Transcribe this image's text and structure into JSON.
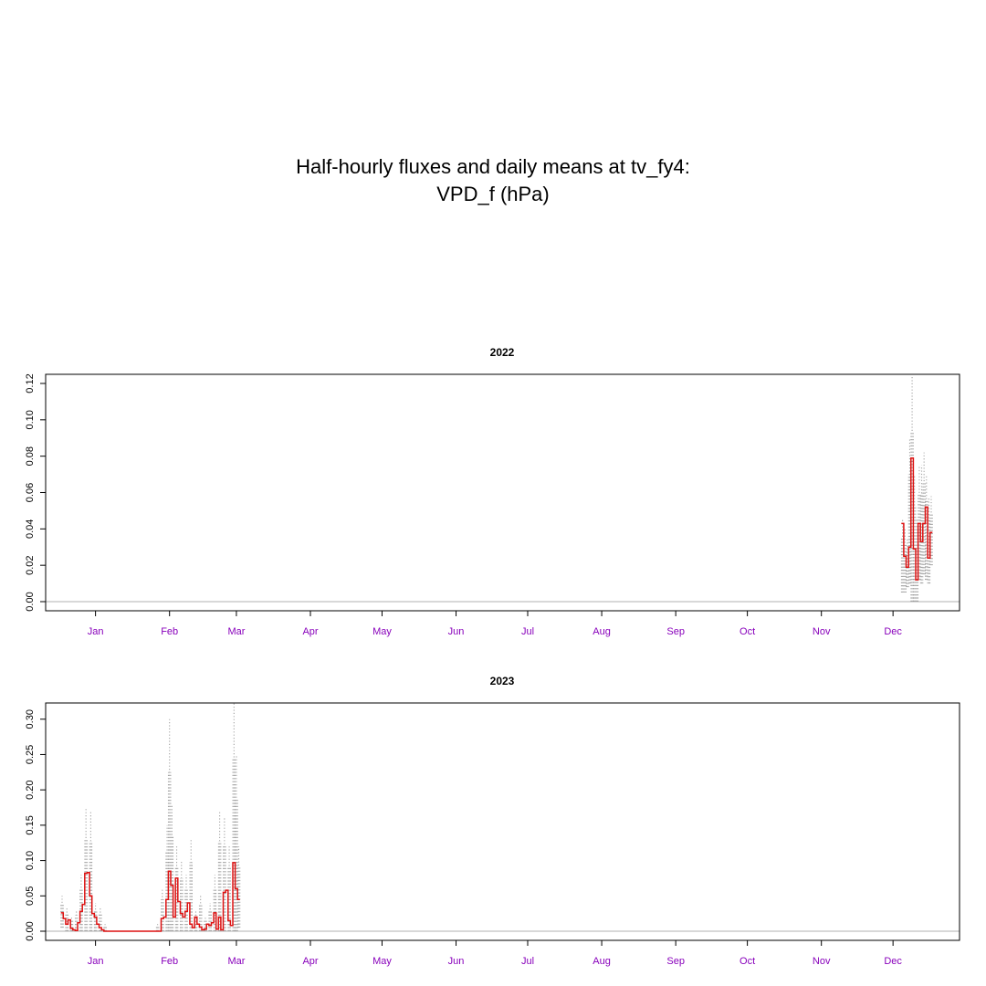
{
  "title": {
    "line1": "Half-hourly fluxes and daily means at tv_fy4:",
    "line2": "VPD_f (hPa)"
  },
  "colors": {
    "daily_mean_line": "#dd1111",
    "half_hourly_points": "#9a9a9a",
    "zero_line": "#b0b0b0",
    "month_labels": "#8800bb",
    "axes": "#000000"
  },
  "chart_data": [
    {
      "type": "line",
      "title": "2022",
      "xlabel": "",
      "ylabel": "",
      "x_unit": "day-of-year",
      "xlim": [
        1,
        365
      ],
      "ylim": [
        0,
        0.12
      ],
      "yticks": [
        0.0,
        0.02,
        0.04,
        0.06,
        0.08,
        0.1,
        0.12
      ],
      "ytick_labels": [
        "0.00",
        "0.02",
        "0.04",
        "0.06",
        "0.08",
        "0.10",
        "0.12"
      ],
      "month_ticks": [
        {
          "label": "Jan",
          "day": 15
        },
        {
          "label": "Feb",
          "day": 46
        },
        {
          "label": "Mar",
          "day": 74
        },
        {
          "label": "Apr",
          "day": 105
        },
        {
          "label": "May",
          "day": 135
        },
        {
          "label": "Jun",
          "day": 166
        },
        {
          "label": "Jul",
          "day": 196
        },
        {
          "label": "Aug",
          "day": 227
        },
        {
          "label": "Sep",
          "day": 258
        },
        {
          "label": "Oct",
          "day": 288
        },
        {
          "label": "Nov",
          "day": 319
        },
        {
          "label": "Dec",
          "day": 349
        }
      ],
      "grid": false,
      "zero_line": true,
      "series": [
        {
          "kind": "daily_mean_step",
          "x": [
            353,
            354,
            355,
            356,
            357,
            358,
            359,
            360,
            361,
            362,
            363,
            364,
            365
          ],
          "y": [
            0.043,
            0.025,
            0.019,
            0.03,
            0.079,
            0.029,
            0.012,
            0.043,
            0.033,
            0.043,
            0.052,
            0.024,
            0.038
          ]
        },
        {
          "kind": "half_hourly_envelope",
          "x": [
            353,
            354,
            355,
            356,
            357,
            358,
            359,
            360,
            361,
            362,
            363,
            364,
            365
          ],
          "ymin": [
            0.005,
            0.005,
            0.008,
            0.01,
            0.0,
            0.0,
            0.0,
            0.012,
            0.01,
            0.015,
            0.012,
            0.01,
            0.02
          ],
          "ymax": [
            0.045,
            0.04,
            0.035,
            0.09,
            0.124,
            0.07,
            0.045,
            0.075,
            0.075,
            0.082,
            0.07,
            0.057,
            0.058
          ]
        }
      ]
    },
    {
      "type": "line",
      "title": "2023",
      "xlabel": "",
      "ylabel": "",
      "x_unit": "day-of-year",
      "xlim": [
        1,
        365
      ],
      "ylim": [
        0,
        0.31
      ],
      "yticks": [
        0.0,
        0.05,
        0.1,
        0.15,
        0.2,
        0.25,
        0.3
      ],
      "ytick_labels": [
        "0.00",
        "0.05",
        "0.10",
        "0.15",
        "0.20",
        "0.25",
        "0.30"
      ],
      "month_ticks": [
        {
          "label": "Jan",
          "day": 15
        },
        {
          "label": "Feb",
          "day": 46
        },
        {
          "label": "Mar",
          "day": 74
        },
        {
          "label": "Apr",
          "day": 105
        },
        {
          "label": "May",
          "day": 135
        },
        {
          "label": "Jun",
          "day": 166
        },
        {
          "label": "Jul",
          "day": 196
        },
        {
          "label": "Aug",
          "day": 227
        },
        {
          "label": "Sep",
          "day": 258
        },
        {
          "label": "Oct",
          "day": 288
        },
        {
          "label": "Nov",
          "day": 319
        },
        {
          "label": "Dec",
          "day": 349
        }
      ],
      "grid": false,
      "zero_line": true,
      "series": [
        {
          "kind": "daily_mean_step",
          "x": [
            1,
            2,
            3,
            4,
            5,
            6,
            7,
            8,
            9,
            10,
            11,
            12,
            13,
            14,
            15,
            16,
            17,
            18,
            19,
            20,
            21,
            22,
            23,
            24,
            25,
            26,
            27,
            28,
            29,
            30,
            31,
            32,
            33,
            34,
            35,
            36,
            37,
            38,
            39,
            40,
            41,
            42,
            43,
            44,
            45,
            46,
            47,
            48,
            49,
            50,
            51,
            52,
            53,
            54,
            55,
            56,
            57,
            58,
            59,
            60,
            61,
            62,
            63,
            64,
            65,
            66,
            67,
            68,
            69,
            70,
            71,
            72,
            73,
            74,
            75
          ],
          "y": [
            0.026,
            0.018,
            0.01,
            0.016,
            0.004,
            0.002,
            0.001,
            0.012,
            0.028,
            0.038,
            0.082,
            0.083,
            0.05,
            0.025,
            0.02,
            0.01,
            0.005,
            0.002,
            0.0,
            0.0,
            0.0,
            0.0,
            0.0,
            0.0,
            0.0,
            0.0,
            0.0,
            0.0,
            0.0,
            0.0,
            0.0,
            0.0,
            0.0,
            0.0,
            0.0,
            0.0,
            0.0,
            0.0,
            0.0,
            0.0,
            0.0,
            0.0,
            0.018,
            0.02,
            0.045,
            0.085,
            0.065,
            0.02,
            0.075,
            0.042,
            0.025,
            0.02,
            0.028,
            0.04,
            0.01,
            0.005,
            0.02,
            0.01,
            0.006,
            0.002,
            0.003,
            0.01,
            0.008,
            0.012,
            0.026,
            0.003,
            0.02,
            0.002,
            0.055,
            0.058,
            0.015,
            0.008,
            0.097,
            0.06,
            0.045
          ]
        },
        {
          "kind": "half_hourly_envelope",
          "x": [
            1,
            3,
            5,
            7,
            9,
            11,
            13,
            15,
            17,
            19,
            21,
            23,
            25,
            27,
            29,
            31,
            33,
            35,
            37,
            39,
            41,
            43,
            45,
            46,
            47,
            49,
            51,
            53,
            55,
            57,
            59,
            61,
            63,
            65,
            67,
            69,
            71,
            73,
            74,
            75
          ],
          "ymin": [
            0.005,
            0.0,
            0.0,
            0.0,
            0.0,
            0.0,
            0.0,
            0.0,
            0.0,
            0.0,
            0.0,
            0.0,
            0.0,
            0.0,
            0.0,
            0.0,
            0.0,
            0.0,
            0.0,
            0.0,
            0.0,
            0.0,
            0.0,
            0.0,
            0.0,
            0.0,
            0.0,
            0.0,
            0.0,
            0.0,
            0.0,
            0.0,
            0.0,
            0.0,
            0.0,
            0.0,
            0.0,
            0.0,
            0.0,
            0.005
          ],
          "ymax": [
            0.05,
            0.035,
            0.02,
            0.03,
            0.08,
            0.175,
            0.17,
            0.04,
            0.035,
            0.01,
            0.0,
            0.0,
            0.0,
            0.0,
            0.0,
            0.0,
            0.0,
            0.0,
            0.0,
            0.0,
            0.01,
            0.06,
            0.15,
            0.3,
            0.18,
            0.12,
            0.1,
            0.08,
            0.13,
            0.03,
            0.05,
            0.02,
            0.04,
            0.08,
            0.17,
            0.16,
            0.12,
            0.325,
            0.25,
            0.12
          ]
        }
      ]
    }
  ]
}
